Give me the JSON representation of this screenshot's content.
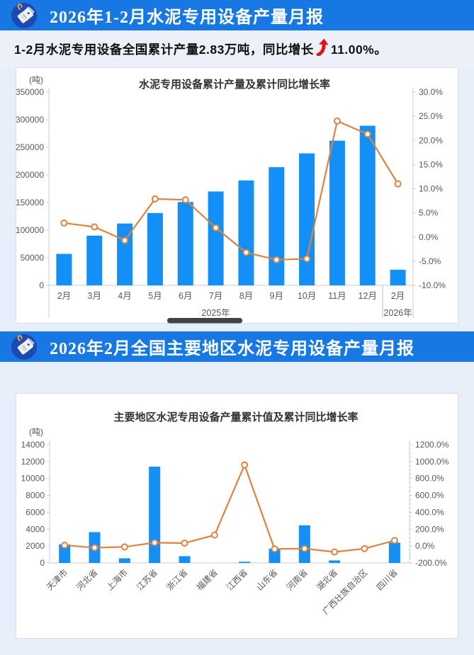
{
  "header1": {
    "title": "2026年1-2月水泥专用设备产量月报",
    "icon": "price-tag-icon"
  },
  "summary": {
    "text_before_arrow": "1-2月水泥专用设备全国累计产量2.83万吨，同比增长",
    "arrow_icon": "up-arrow-icon",
    "growth_value": "11.00%。"
  },
  "header2": {
    "title": "2026年2月全国主要地区水泥专用设备产量月报",
    "icon": "price-tag-icon"
  },
  "colors": {
    "header_bg": "#1778e3",
    "icon_circle": "#1b4ab0",
    "bar": "#1290f8",
    "line": "#e0813c",
    "arrow_red": "#e21418",
    "page_bg": "#e8eefa",
    "card_border": "#d8dce8",
    "axis_line": "#cccccc",
    "axis_text": "#595959",
    "title_text": "#333333"
  },
  "chart_data": [
    {
      "type": "bar+line",
      "title": "水泥专用设备累计产量及累计同比增长率",
      "unit_label": "(吨)",
      "categories": [
        "2月",
        "3月",
        "4月",
        "5月",
        "6月",
        "7月",
        "8月",
        "9月",
        "10月",
        "11月",
        "12月",
        "2月"
      ],
      "group_labels": [
        {
          "label": "2025年",
          "from": 0,
          "to": 10
        },
        {
          "label": "2026年",
          "from": 11,
          "to": 11
        }
      ],
      "bar_series": {
        "name": "累计产量(吨)",
        "values": [
          57000,
          90000,
          112000,
          131000,
          151000,
          170000,
          190000,
          214000,
          239000,
          262000,
          289000,
          28300
        ]
      },
      "line_series": {
        "name": "累计同比增长率",
        "values": [
          2.9,
          2.1,
          -0.7,
          7.9,
          7.7,
          1.9,
          -3.2,
          -4.7,
          -4.5,
          24.0,
          21.3,
          11.0
        ]
      },
      "left_axis": {
        "min": 0,
        "max": 350000,
        "tick_labels": [
          "0",
          "50000",
          "100000",
          "150000",
          "200000",
          "250000",
          "300000",
          "350000"
        ]
      },
      "right_axis": {
        "min": -10,
        "max": 30,
        "tick_labels": [
          "-10.0%",
          "-5.0%",
          "0.0%",
          "5.0%",
          "10.0%",
          "15.0%",
          "20.0%",
          "25.0%",
          "30.0%"
        ]
      },
      "legend": "none",
      "grid": "off"
    },
    {
      "type": "bar+line",
      "title": "主要地区水泥专用设备产量累计值及累计同比增长率",
      "unit_label": "(吨)",
      "categories": [
        "天津市",
        "河北省",
        "上海市",
        "江苏省",
        "浙江省",
        "福建省",
        "江西省",
        "山东省",
        "河南省",
        "湖北省",
        "广西壮族自治区",
        "四川省"
      ],
      "bar_series": {
        "name": "产量累计值(吨)",
        "values": [
          2200,
          3650,
          550,
          11400,
          800,
          0,
          150,
          1700,
          4450,
          300,
          0,
          2400
        ]
      },
      "line_series": {
        "name": "累计同比增长率",
        "values": [
          10,
          -20,
          -10,
          40,
          35,
          130,
          960,
          -35,
          -30,
          -70,
          -30,
          65
        ]
      },
      "left_axis": {
        "min": 0,
        "max": 14000,
        "tick_labels": [
          "0",
          "2000",
          "4000",
          "6000",
          "8000",
          "10000",
          "12000",
          "14000"
        ]
      },
      "right_axis": {
        "min": -200,
        "max": 1200,
        "tick_labels": [
          "-200.0%",
          "0.0%",
          "200.0%",
          "400.0%",
          "600.0%",
          "800.0%",
          "1000.0%",
          "1200.0%"
        ]
      },
      "legend": "none",
      "grid": "off"
    }
  ]
}
